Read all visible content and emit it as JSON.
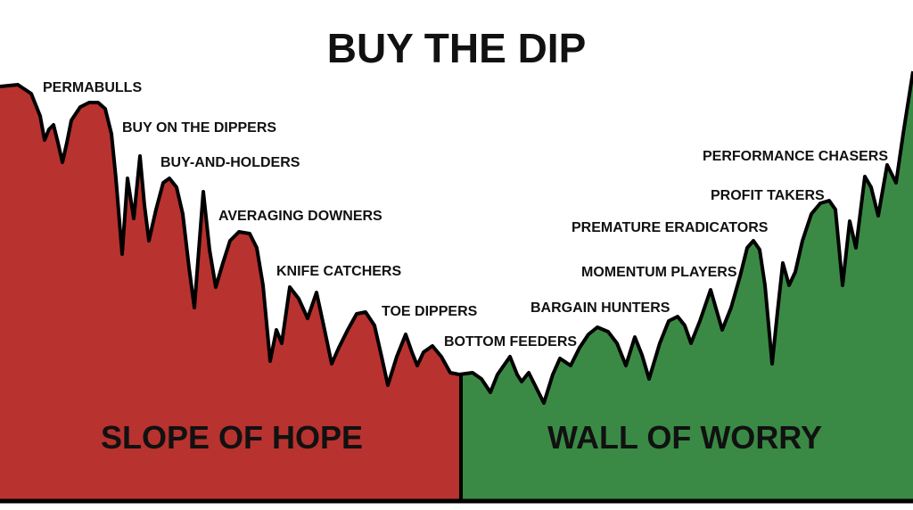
{
  "title": "BUY THE DIP",
  "colors": {
    "slope": "#b8322f",
    "wall": "#3a8a45",
    "line": "#000000"
  },
  "regions": {
    "left": "SLOPE OF HOPE",
    "right": "WALL OF WORRY"
  },
  "labels": [
    "PERMABULLS",
    "BUY ON THE DIPPERS",
    "BUY-AND-HOLDERS",
    "AVERAGING DOWNERS",
    "KNIFE CATCHERS",
    "TOE DIPPERS",
    "BOTTOM FEEDERS",
    "BARGAIN HUNTERS",
    "MOMENTUM PLAYERS",
    "PREMATURE ERADICATORS",
    "PROFIT TAKERS",
    "PERFORMANCE CHASERS"
  ]
}
